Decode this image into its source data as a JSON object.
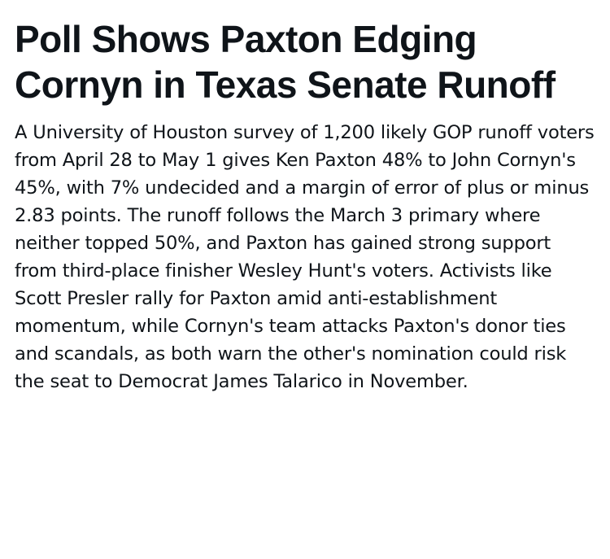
{
  "article": {
    "headline": "Poll Shows Paxton Edging Cornyn in Texas Senate Runoff",
    "summary": "A University of Houston survey of 1,200 likely GOP runoff voters from April 28 to May 1 gives Ken Paxton 48% to John Cornyn's 45%, with 7% undecided and a margin of error of plus or minus 2.83 points. The runoff follows the March 3 primary where neither topped 50%, and Paxton has gained strong support from third-place finisher Wesley Hunt's voters. Activists like Scott Presler rally for Paxton amid anti-establishment momentum, while Cornyn's team attacks Paxton's donor ties and scandals, as both warn the other's nomination could risk the seat to Democrat James Talarico in November."
  }
}
